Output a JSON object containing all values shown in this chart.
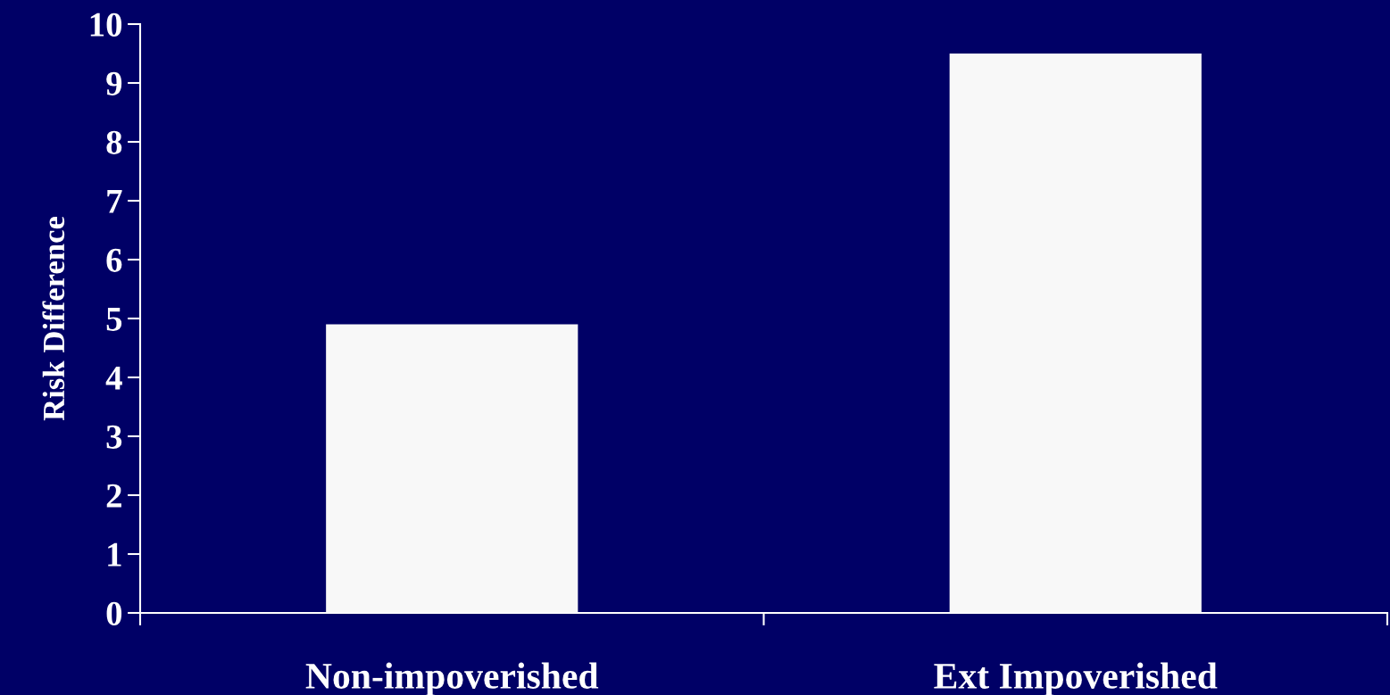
{
  "chart_data": {
    "type": "bar",
    "ylabel": "Risk Difference",
    "categories": [
      "Non-impoverished",
      "Ext Impoverished"
    ],
    "values": [
      4.9,
      9.5
    ],
    "color": "#f8f8f8",
    "ylim": [
      0,
      10
    ],
    "yticks": [
      0,
      1,
      2,
      3,
      4,
      5,
      6,
      7,
      8,
      9,
      10
    ],
    "grid": false,
    "legend": false
  }
}
